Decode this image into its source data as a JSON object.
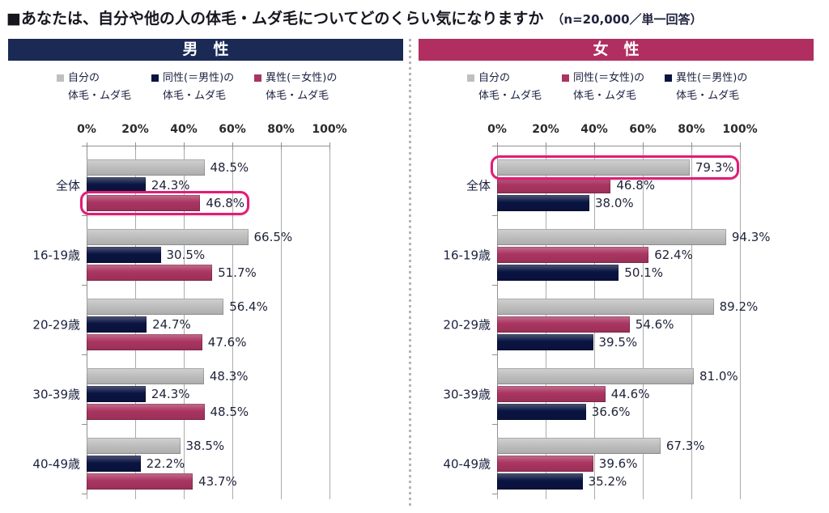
{
  "title": {
    "text": "■あなたは、自分や他の人の体毛・ムダ毛についてどのくらい気になりますか",
    "note": "（n=20,000／単一回答）"
  },
  "colors": {
    "highlight_pink": "#e31b77",
    "bar_gray": "#bfbfbf",
    "bar_navy": "#0a1441",
    "bar_crimson": "#aa3561",
    "header_navy": "#1a2a55",
    "header_crimson": "#b02f60",
    "gridline_gray": "#ababab"
  },
  "chart_data": [
    {
      "type": "bar",
      "orientation": "horizontal",
      "panel_title": "男　性",
      "header_color": "#1a2a55",
      "xlim": [
        0,
        100
      ],
      "ticks": [
        "0%",
        "20%",
        "40%",
        "60%",
        "80%",
        "100%"
      ],
      "grid": true,
      "categories": [
        "全体",
        "16-19歳",
        "20-29歳",
        "30-39歳",
        "40-49歳"
      ],
      "series": [
        {
          "name": "自分の体毛・ムダ毛",
          "legend_line1": "自分の",
          "legend_line2": "体毛・ムダ毛",
          "color": "#bfbfbf",
          "values": [
            48.5,
            66.5,
            56.4,
            48.3,
            38.5
          ]
        },
        {
          "name": "同性(＝男性)の体毛・ムダ毛",
          "legend_line1": "同性(＝男性)の",
          "legend_line2": "体毛・ムダ毛",
          "color": "#0a1441",
          "values": [
            24.3,
            30.5,
            24.7,
            24.3,
            22.2
          ]
        },
        {
          "name": "異性(＝女性)の体毛・ムダ毛",
          "legend_line1": "異性(＝女性)の",
          "legend_line2": "体毛・ムダ毛",
          "color": "#aa3561",
          "values": [
            46.8,
            51.7,
            47.6,
            48.5,
            43.7
          ]
        }
      ],
      "highlight": {
        "category_index": 0,
        "series_index": 2
      }
    },
    {
      "type": "bar",
      "orientation": "horizontal",
      "panel_title": "女　性",
      "header_color": "#b02f60",
      "xlim": [
        0,
        100
      ],
      "ticks": [
        "0%",
        "20%",
        "40%",
        "60%",
        "80%",
        "100%"
      ],
      "grid": true,
      "categories": [
        "全体",
        "16-19歳",
        "20-29歳",
        "30-39歳",
        "40-49歳"
      ],
      "series": [
        {
          "name": "自分の体毛・ムダ毛",
          "legend_line1": "自分の",
          "legend_line2": "体毛・ムダ毛",
          "color": "#bfbfbf",
          "values": [
            79.3,
            94.3,
            89.2,
            81.0,
            67.3
          ]
        },
        {
          "name": "同性(＝女性)の体毛・ムダ毛",
          "legend_line1": "同性(＝女性)の",
          "legend_line2": "体毛・ムダ毛",
          "color": "#aa3561",
          "values": [
            46.8,
            62.4,
            54.6,
            44.6,
            39.6
          ]
        },
        {
          "name": "異性(＝男性)の体毛・ムダ毛",
          "legend_line1": "異性(＝男性)の",
          "legend_line2": "体毛・ムダ毛",
          "color": "#0a1441",
          "values": [
            38.0,
            50.1,
            39.5,
            36.6,
            35.2
          ]
        }
      ],
      "highlight": {
        "category_index": 0,
        "series_index": 0
      }
    }
  ]
}
